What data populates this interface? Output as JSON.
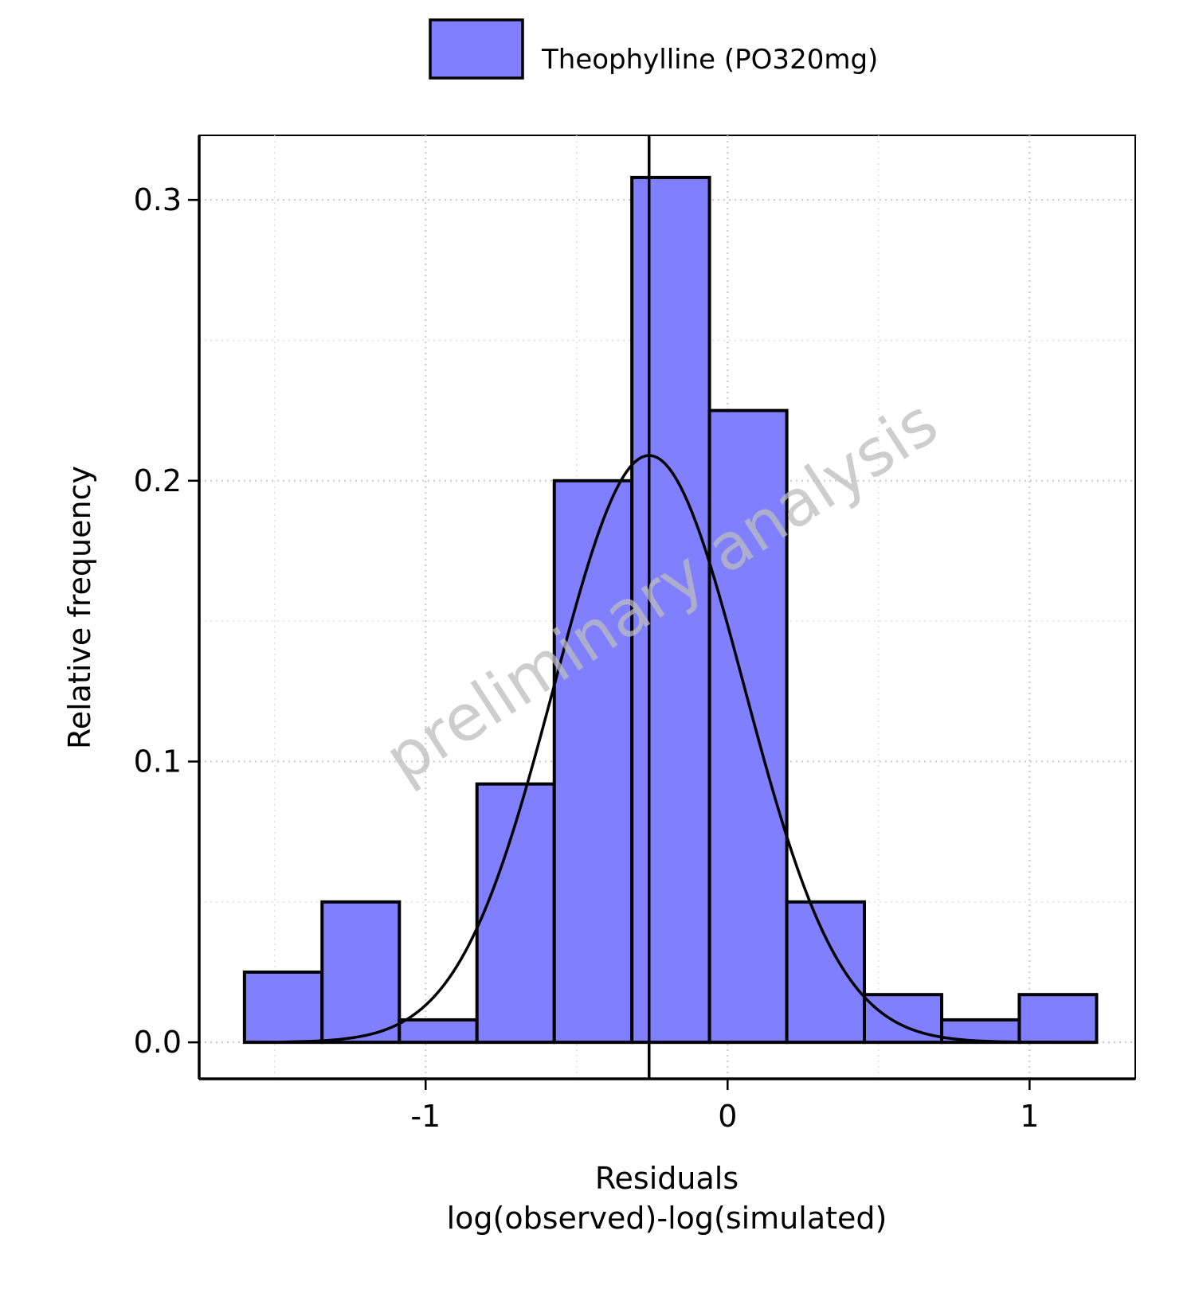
{
  "chart_data": {
    "type": "bar",
    "subtype": "histogram",
    "legend": {
      "label": "Theophylline (PO320mg)",
      "placement": "top-center"
    },
    "bar_color": "#8080ff",
    "bar_edge_color": "#000000",
    "xlabel_line1": "Residuals",
    "xlabel_line2": "log(observed)-log(simulated)",
    "ylabel": "Relative frequency",
    "watermark": "preliminary analysis",
    "xlim": [
      -1.75,
      1.35
    ],
    "ylim": [
      -0.013,
      0.323
    ],
    "x_ticks": [
      {
        "value": -1,
        "label": "-1"
      },
      {
        "value": 0,
        "label": "0"
      },
      {
        "value": 1,
        "label": "1"
      }
    ],
    "y_ticks": [
      {
        "value": 0.0,
        "label": "0.0"
      },
      {
        "value": 0.1,
        "label": "0.1"
      },
      {
        "value": 0.2,
        "label": "0.2"
      },
      {
        "value": 0.3,
        "label": "0.3"
      }
    ],
    "bins": [
      {
        "x0": -1.6,
        "x1": -1.343,
        "y": 0.025
      },
      {
        "x0": -1.343,
        "x1": -1.087,
        "y": 0.05
      },
      {
        "x0": -1.087,
        "x1": -0.83,
        "y": 0.008
      },
      {
        "x0": -0.83,
        "x1": -0.574,
        "y": 0.092
      },
      {
        "x0": -0.574,
        "x1": -0.317,
        "y": 0.2
      },
      {
        "x0": -0.317,
        "x1": -0.06,
        "y": 0.308
      },
      {
        "x0": -0.06,
        "x1": 0.196,
        "y": 0.225
      },
      {
        "x0": 0.196,
        "x1": 0.453,
        "y": 0.05
      },
      {
        "x0": 0.453,
        "x1": 0.709,
        "y": 0.017
      },
      {
        "x0": 0.709,
        "x1": 0.966,
        "y": 0.008
      },
      {
        "x0": 0.966,
        "x1": 1.222,
        "y": 0.017
      }
    ],
    "mean_line": {
      "x": -0.26
    },
    "normal_curve": {
      "mean": -0.26,
      "sd": 0.315,
      "peak": 0.209,
      "x_range": [
        -1.47,
        1.08
      ]
    },
    "grid": true
  }
}
